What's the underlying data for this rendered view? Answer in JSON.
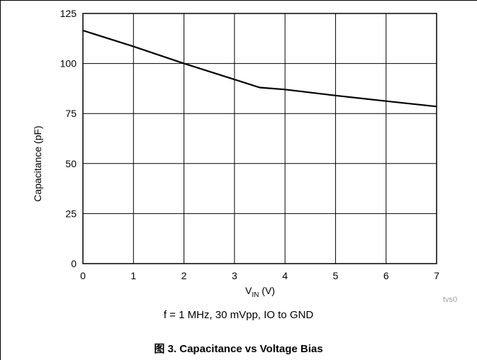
{
  "chart_data": {
    "type": "line",
    "title": "",
    "xlabel_main": "V",
    "xlabel_sub": "IN",
    "xlabel_unit": " (V)",
    "ylabel": "Capacitance (pF)",
    "xlim": [
      0,
      7
    ],
    "ylim": [
      0,
      125
    ],
    "x_ticks": [
      "0",
      "1",
      "2",
      "3",
      "4",
      "5",
      "6",
      "7"
    ],
    "y_ticks": [
      "0",
      "25",
      "50",
      "75",
      "100",
      "125"
    ],
    "grid": true,
    "series": [
      {
        "x": [
          0,
          1,
          2,
          3,
          3.5,
          4,
          5,
          6,
          7
        ],
        "values": [
          116.5,
          108.5,
          100,
          92,
          88,
          87,
          84,
          81.2,
          78.5
        ],
        "color": "#000000"
      }
    ]
  },
  "annotation": "f = 1 MHz, 30 mVpp, IO to GND",
  "source_tag": "tvs0",
  "caption": {
    "prefix": "图 3.",
    "text": " Capacitance vs Voltage Bias"
  }
}
